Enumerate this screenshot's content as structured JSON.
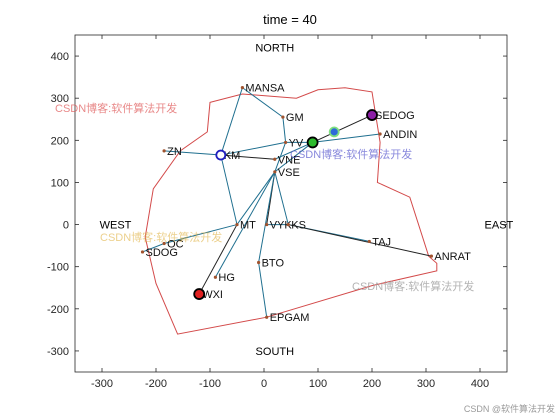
{
  "chart_data": {
    "type": "scatter",
    "title": "time = 40",
    "xlabel": "",
    "ylabel": "",
    "xlim": [
      -350,
      450
    ],
    "ylim": [
      -350,
      450
    ],
    "xticks": [
      -300,
      -200,
      -100,
      0,
      100,
      200,
      300,
      400
    ],
    "yticks": [
      -300,
      -200,
      -100,
      0,
      100,
      200,
      300,
      400
    ],
    "grid": false,
    "annotations": [
      {
        "text": "NORTH",
        "x": 20,
        "y": 420
      },
      {
        "text": "SOUTH",
        "x": 20,
        "y": -300
      },
      {
        "text": "WEST",
        "x": -275,
        "y": 0
      },
      {
        "text": "EAST",
        "x": 435,
        "y": 0
      }
    ],
    "boundary": [
      [
        -100,
        290
      ],
      [
        -40,
        310
      ],
      [
        60,
        300
      ],
      [
        100,
        320
      ],
      [
        150,
        325
      ],
      [
        200,
        315
      ],
      [
        215,
        195
      ],
      [
        210,
        100
      ],
      [
        270,
        65
      ],
      [
        305,
        -75
      ],
      [
        320,
        -92
      ],
      [
        320,
        -110
      ],
      [
        200,
        -145
      ],
      [
        5,
        -220
      ],
      [
        -160,
        -260
      ],
      [
        -200,
        -140
      ],
      [
        -220,
        -30
      ],
      [
        -205,
        85
      ],
      [
        -155,
        175
      ],
      [
        -105,
        220
      ]
    ],
    "nodes": [
      {
        "name": "MANSA",
        "x": -40,
        "y": 325
      },
      {
        "name": "GM",
        "x": 35,
        "y": 255
      },
      {
        "name": "SEDOG",
        "x": 200,
        "y": 260
      },
      {
        "name": "ANDIN",
        "x": 215,
        "y": 215
      },
      {
        "name": "YV",
        "x": 40,
        "y": 195
      },
      {
        "name": "ZN",
        "x": -185,
        "y": 175
      },
      {
        "name": "KM",
        "x": -80,
        "y": 165
      },
      {
        "name": "VNE",
        "x": 20,
        "y": 155
      },
      {
        "name": "VSE",
        "x": 20,
        "y": 125
      },
      {
        "name": "MT",
        "x": -50,
        "y": 0
      },
      {
        "name": "VYK",
        "x": 5,
        "y": 0
      },
      {
        "name": "KS",
        "x": 45,
        "y": 0
      },
      {
        "name": "OC",
        "x": -185,
        "y": -45
      },
      {
        "name": "SDOG",
        "x": -225,
        "y": -65
      },
      {
        "name": "TAJ",
        "x": 195,
        "y": -40
      },
      {
        "name": "ANRAT",
        "x": 310,
        "y": -75
      },
      {
        "name": "BTO",
        "x": -10,
        "y": -90
      },
      {
        "name": "HG",
        "x": -90,
        "y": -125
      },
      {
        "name": "WXI",
        "x": -120,
        "y": -165
      },
      {
        "name": "EPGAM",
        "x": 5,
        "y": -220
      }
    ],
    "edges": [
      [
        -40,
        325,
        35,
        255
      ],
      [
        35,
        255,
        40,
        195
      ],
      [
        200,
        260,
        90,
        195
      ],
      [
        215,
        215,
        90,
        195
      ],
      [
        90,
        195,
        40,
        195
      ],
      [
        40,
        195,
        -80,
        165
      ],
      [
        -185,
        175,
        -80,
        165
      ],
      [
        -80,
        165,
        20,
        155
      ],
      [
        20,
        155,
        90,
        195
      ],
      [
        90,
        195,
        20,
        125
      ],
      [
        -80,
        165,
        -50,
        0
      ],
      [
        -50,
        0,
        20,
        125
      ],
      [
        20,
        125,
        5,
        0
      ],
      [
        5,
        0,
        45,
        0
      ],
      [
        45,
        0,
        20,
        125
      ],
      [
        -185,
        -45,
        -50,
        0
      ],
      [
        -225,
        -65,
        -185,
        -45
      ],
      [
        -50,
        0,
        -120,
        -165
      ],
      [
        20,
        125,
        -90,
        -125
      ],
      [
        20,
        125,
        -10,
        -90
      ],
      [
        -10,
        -90,
        5,
        -220
      ],
      [
        45,
        0,
        195,
        -40
      ],
      [
        45,
        0,
        310,
        -75
      ],
      [
        -40,
        325,
        -80,
        165
      ],
      [
        40,
        195,
        20,
        125
      ]
    ],
    "aircraft": [
      {
        "x": -80,
        "y": 165,
        "fill": "#ffffff",
        "edge": "#1f1fbf",
        "size": 4.5
      },
      {
        "x": 90,
        "y": 195,
        "fill": "#2dbb2d",
        "edge": "#000000",
        "size": 5
      },
      {
        "x": 130,
        "y": 220,
        "fill": "#2d6bd9",
        "edge": "#7fe07f",
        "size": 4.5
      },
      {
        "x": 200,
        "y": 260,
        "fill": "#8c1fa6",
        "edge": "#000000",
        "size": 5
      },
      {
        "x": -120,
        "y": -165,
        "fill": "#e02020",
        "edge": "#000000",
        "size": 5
      }
    ],
    "colors": {
      "boundary": "#d34a4a",
      "edge": "#1f6f8f",
      "edge_dark": "#222222",
      "node": "#a0522d",
      "axis": "#262626"
    }
  },
  "watermarks": [
    "CSDN博客:软件算法开发",
    "CSDN博客:软件算法开发",
    "CSDN博客:软件算法开发",
    "CSDN博客:软件算法开发"
  ],
  "footer": "CSDN @软件算法开发"
}
